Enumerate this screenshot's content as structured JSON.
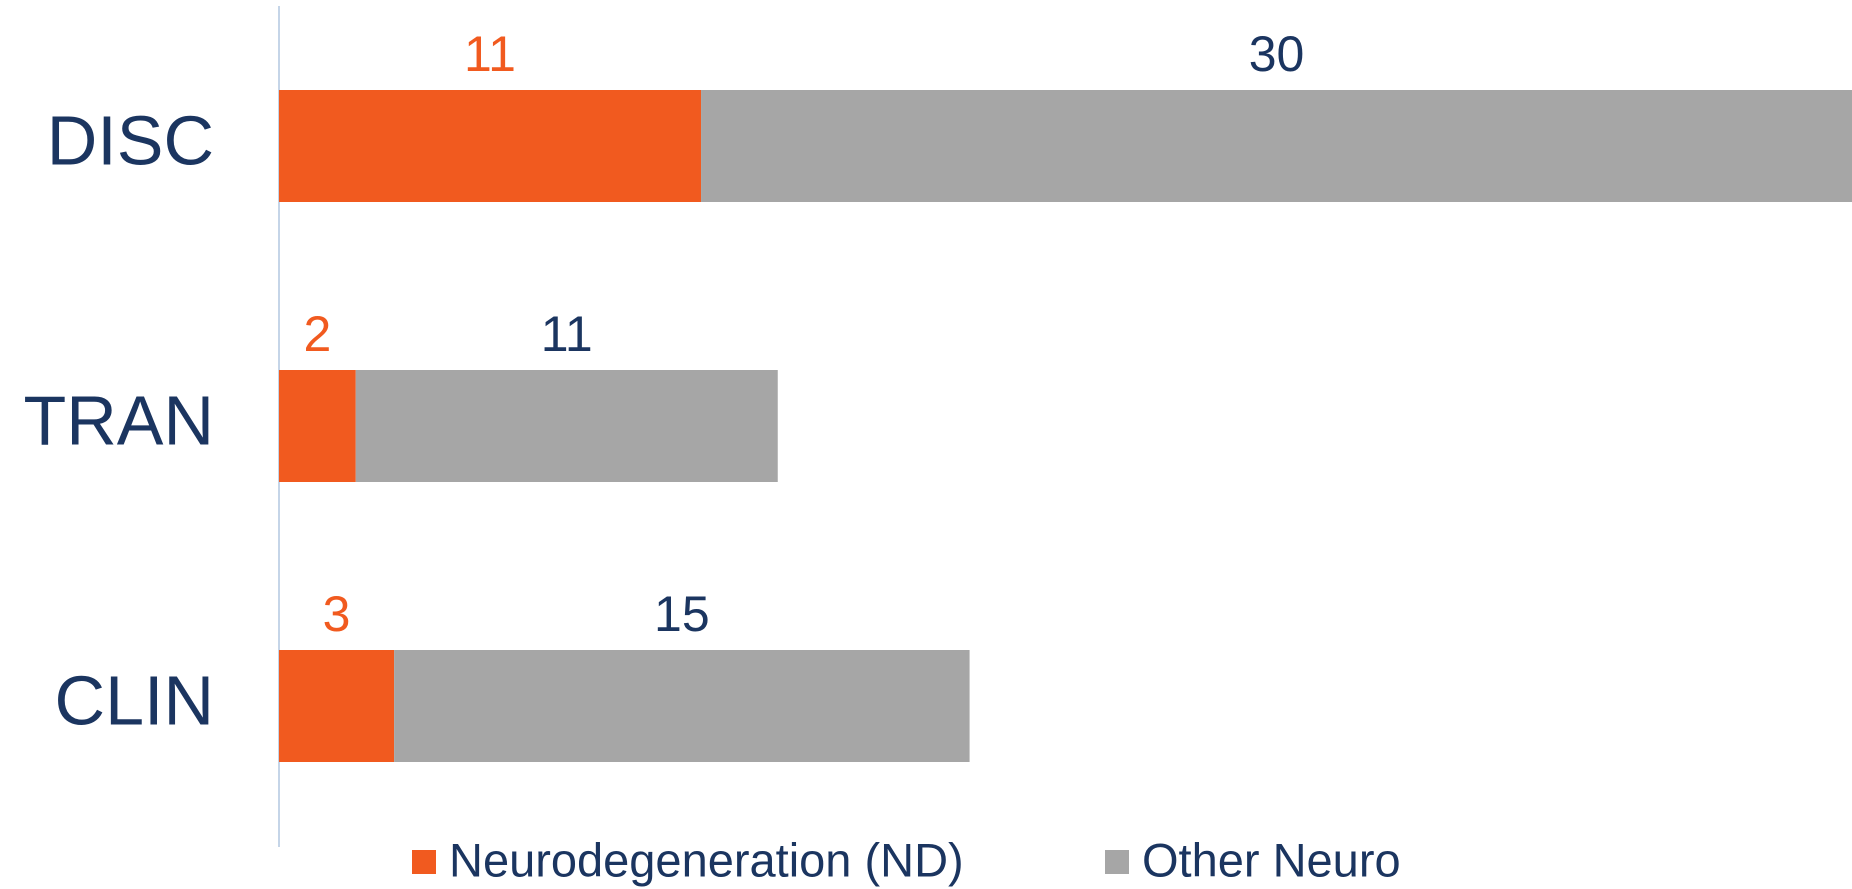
{
  "chart_data": {
    "type": "stacked_bar",
    "orientation": "horizontal",
    "categories": [
      "DISC",
      "TRAN",
      "CLIN"
    ],
    "series": [
      {
        "name": "Neurodegeneration (ND)",
        "color": "#f15a1f",
        "label_color": "#f15a1f",
        "values": [
          11,
          2,
          3
        ]
      },
      {
        "name": "Other Neuro",
        "color": "#a6a6a6",
        "label_color": "#1b3560",
        "values": [
          30,
          11,
          15
        ]
      }
    ],
    "xlim": [
      0,
      41
    ],
    "axis_color": "#c5d5e8",
    "text_color": "#1b3560",
    "legend": "bottom"
  }
}
